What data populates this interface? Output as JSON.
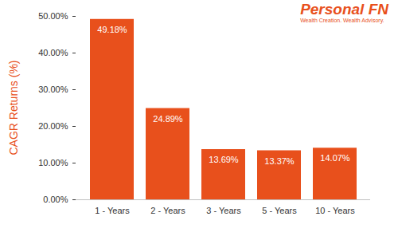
{
  "chart_data": {
    "type": "bar",
    "annotations": [
      "Personal FN",
      "Wealth Creation. Wealth Advisory."
    ],
    "y_label": "CAGR Returns (%)",
    "categories": [
      "1 - Years",
      "2 - Years",
      "3 - Years",
      "5 - Years",
      "10 - Years"
    ],
    "values": [
      49.18,
      24.89,
      13.69,
      13.37,
      14.07
    ],
    "value_labels": [
      "49.18%",
      "24.89%",
      "13.69%",
      "13.37%",
      "14.07%"
    ],
    "color": "#e8501c",
    "ylim": [
      0,
      50
    ],
    "yticks": [
      {
        "value": 0,
        "label": "0.00%"
      },
      {
        "value": 10,
        "label": "10.00%"
      },
      {
        "value": 20,
        "label": "20.00%"
      },
      {
        "value": 30,
        "label": "30.00%"
      },
      {
        "value": 40,
        "label": "40.00%"
      },
      {
        "value": 50,
        "label": "50.00%"
      }
    ],
    "grid": false,
    "data_labels": true
  }
}
